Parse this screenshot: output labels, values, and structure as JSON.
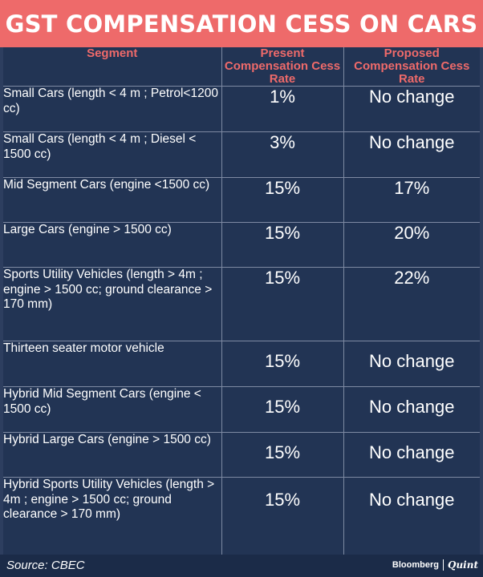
{
  "title": "GST COMPENSATION CESS ON CARS",
  "columns": [
    "Segment",
    "Present Compensation Cess Rate",
    "Proposed Compensation Cess Rate"
  ],
  "rows": [
    {
      "segment": "Small Cars (length < 4 m ; Petrol<1200 cc)",
      "present": "1%",
      "proposed": "No change"
    },
    {
      "segment": "Small Cars (length < 4 m ; Diesel < 1500 cc)",
      "present": "3%",
      "proposed": "No change"
    },
    {
      "segment": "Mid Segment Cars (engine <1500 cc)",
      "present": "15%",
      "proposed": "17%"
    },
    {
      "segment": "Large Cars (engine > 1500 cc)",
      "present": "15%",
      "proposed": "20%"
    },
    {
      "segment": "Sports Utility Vehicles (length > 4m ; engine > 1500 cc; ground clearance > 170 mm)",
      "present": "15%",
      "proposed": "22%"
    },
    {
      "segment": "Thirteen seater motor vehicle",
      "present": "15%",
      "proposed": "No change"
    },
    {
      "segment": "Hybrid Mid Segment Cars (engine < 1500 cc)",
      "present": "15%",
      "proposed": "No change"
    },
    {
      "segment": "Hybrid Large Cars (engine > 1500 cc)",
      "present": "15%",
      "proposed": "No change"
    },
    {
      "segment": "Hybrid Sports Utility Vehicles (length > 4m ; engine > 1500 cc; ground clearance > 170 mm)",
      "present": "15%",
      "proposed": "No change"
    }
  ],
  "footer": {
    "source": "Source: CBEC",
    "brand_left": "Bloomberg",
    "brand_right": "Quint"
  },
  "colors": {
    "banner": "#ee6a6a",
    "table_background": "#223454",
    "header_text": "#ee6a6a",
    "body_text": "#ffffff"
  }
}
